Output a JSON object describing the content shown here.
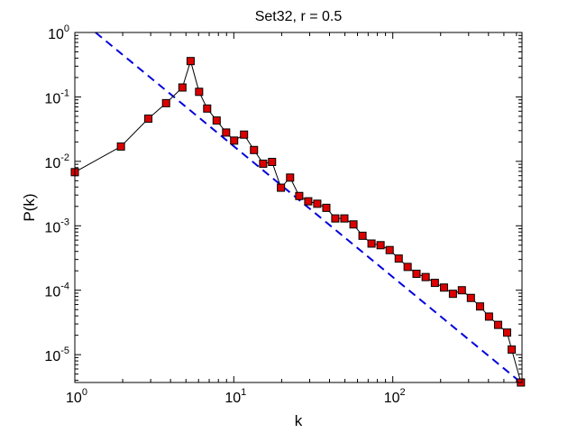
{
  "chart_data": {
    "type": "line",
    "title": "Set32, r = 0.5",
    "xlabel": "k",
    "ylabel": "P(k)",
    "xscale": "log",
    "yscale": "log",
    "xlim": [
      1,
      650
    ],
    "ylim": [
      3.7e-06,
      1
    ],
    "grid": false,
    "x_tick_labels": [
      {
        "value": 1,
        "base": "10",
        "exp": "0"
      },
      {
        "value": 10,
        "base": "10",
        "exp": "1"
      },
      {
        "value": 100,
        "base": "10",
        "exp": "2"
      }
    ],
    "y_tick_labels": [
      {
        "value": 1e-05,
        "base": "10",
        "exp": "-5"
      },
      {
        "value": 0.0001,
        "base": "10",
        "exp": "-4"
      },
      {
        "value": 0.001,
        "base": "10",
        "exp": "-3"
      },
      {
        "value": 0.01,
        "base": "10",
        "exp": "-2"
      },
      {
        "value": 0.1,
        "base": "10",
        "exp": "-1"
      },
      {
        "value": 1,
        "base": "10",
        "exp": "0"
      }
    ],
    "series": [
      {
        "style": "line-square-markers",
        "line_color": "#000000",
        "marker_fill": "#dd0000",
        "points": [
          [
            1.0,
            0.0068
          ],
          [
            1.95,
            0.017
          ],
          [
            2.9,
            0.046
          ],
          [
            3.75,
            0.08
          ],
          [
            4.75,
            0.14
          ],
          [
            5.35,
            0.36
          ],
          [
            6.05,
            0.12
          ],
          [
            6.8,
            0.066
          ],
          [
            7.8,
            0.043
          ],
          [
            8.95,
            0.028
          ],
          [
            10.05,
            0.021
          ],
          [
            11.6,
            0.026
          ],
          [
            13.4,
            0.015
          ],
          [
            15.3,
            0.0092
          ],
          [
            17.4,
            0.0098
          ],
          [
            19.8,
            0.0039
          ],
          [
            22.6,
            0.0056
          ],
          [
            25.8,
            0.0029
          ],
          [
            29.4,
            0.0024
          ],
          [
            33.5,
            0.0022
          ],
          [
            38.2,
            0.0019
          ],
          [
            43.5,
            0.0013
          ],
          [
            49.6,
            0.0013
          ],
          [
            56.6,
            0.00105
          ],
          [
            64.5,
            0.0007
          ],
          [
            73.5,
            0.00053
          ],
          [
            83.8,
            0.0005
          ],
          [
            95.6,
            0.00042
          ],
          [
            109,
            0.00031
          ],
          [
            124,
            0.00023
          ],
          [
            141,
            0.00018
          ],
          [
            161,
            0.00016
          ],
          [
            184,
            0.00013
          ],
          [
            210,
            0.00011
          ],
          [
            239,
            8.8e-05
          ],
          [
            272,
            0.0001
          ],
          [
            310,
            7.6e-05
          ],
          [
            354,
            5.6e-05
          ],
          [
            403,
            3.9e-05
          ],
          [
            460,
            2.9e-05
          ],
          [
            524,
            2.2e-05
          ],
          [
            560,
            1.2e-05
          ],
          [
            640,
            3.7e-06
          ]
        ]
      },
      {
        "style": "dashed-line",
        "line_color": "#0000dd",
        "points": [
          [
            1.35,
            1.0
          ],
          [
            640,
            3.7e-06
          ]
        ]
      }
    ]
  }
}
